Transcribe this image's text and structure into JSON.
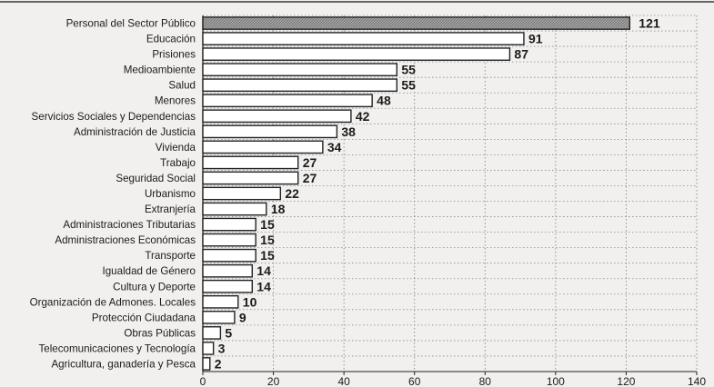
{
  "chart_data": {
    "type": "bar",
    "orientation": "horizontal",
    "categories": [
      "Personal del Sector Público",
      "Educación",
      "Prisiones",
      "Medioambiente",
      "Salud",
      "Menores",
      "Servicios Sociales y Dependencias",
      "Administración de Justicia",
      "Vivienda",
      "Trabajo",
      "Seguridad Social",
      "Urbanismo",
      "Extranjería",
      "Administraciones Tributarias",
      "Administraciones Económicas",
      "Transporte",
      "Igualdad de Género",
      "Cultura y Deporte",
      "Organización de Admones. Locales",
      "Protección Ciudadana",
      "Obras Públicas",
      "Telecomunicaciones y Tecnología",
      "Agricultura, ganadería y Pesca"
    ],
    "values": [
      121,
      91,
      87,
      55,
      55,
      48,
      42,
      38,
      34,
      27,
      27,
      22,
      18,
      15,
      15,
      15,
      14,
      14,
      10,
      9,
      5,
      3,
      2
    ],
    "xlim": [
      0,
      140
    ],
    "xticks": [
      0,
      20,
      40,
      60,
      80,
      100,
      120,
      140
    ],
    "grid": true,
    "highlight_index": 0,
    "colors": {
      "highlight_fill": "#9a9a9a",
      "bar_fill": "#ffffff",
      "bar_stroke": "#222222",
      "grid": "#8a8a8a",
      "text": "#1b1b1b"
    }
  }
}
